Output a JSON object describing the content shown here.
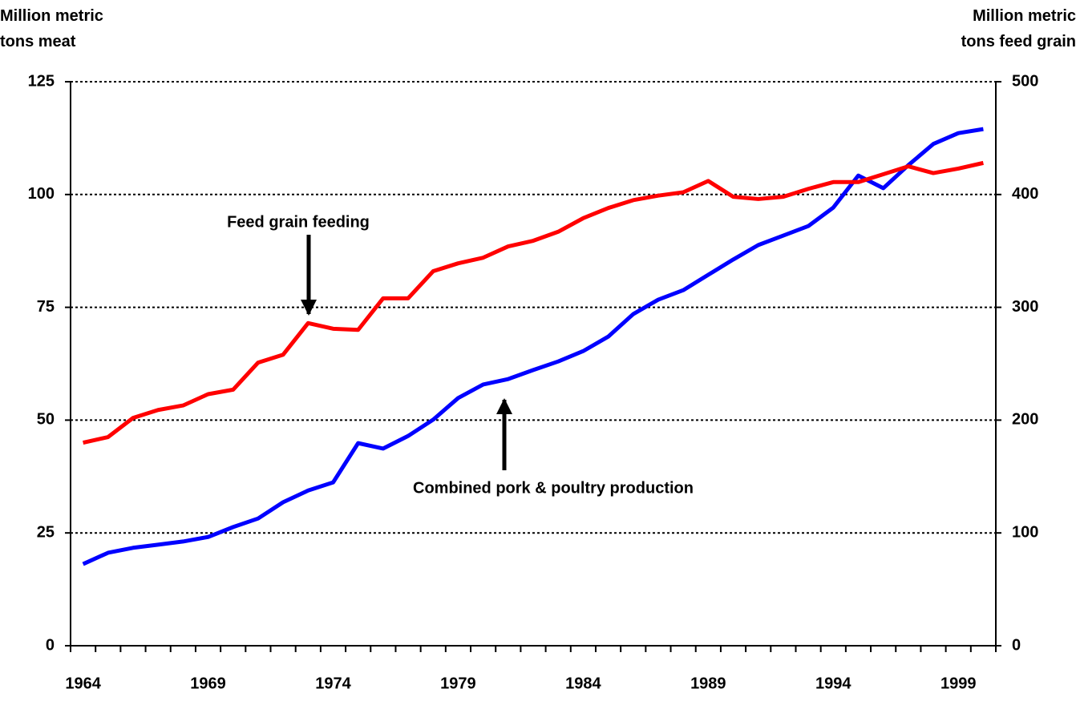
{
  "chart_data": {
    "type": "line",
    "y_label": "Million metric tons meat",
    "y2_label": "Million metric tons feed grain",
    "x": [
      1964,
      1965,
      1966,
      1967,
      1968,
      1969,
      1970,
      1971,
      1972,
      1973,
      1974,
      1975,
      1976,
      1977,
      1978,
      1979,
      1980,
      1981,
      1982,
      1983,
      1984,
      1985,
      1986,
      1987,
      1988,
      1989,
      1990,
      1991,
      1992,
      1993,
      1994,
      1995,
      1996,
      1997,
      1998,
      1999,
      2000
    ],
    "xlim": [
      1963.5,
      2000.5
    ],
    "xticks": [
      1964,
      1969,
      1974,
      1979,
      1984,
      1989,
      1994,
      1999
    ],
    "ylim": [
      0,
      125
    ],
    "yticks": [
      0,
      25,
      50,
      75,
      100,
      125
    ],
    "y2lim": [
      0,
      500
    ],
    "y2ticks": [
      0,
      100,
      200,
      300,
      400,
      500
    ],
    "grid": true,
    "series": [
      {
        "color": "#0000ff",
        "values": [
          18.1,
          20.6,
          21.7,
          22.4,
          23.1,
          24.1,
          26.3,
          28.2,
          31.8,
          34.4,
          36.2,
          44.9,
          43.7,
          46.5,
          50.1,
          54.9,
          57.9,
          59.1,
          61.1,
          63.0,
          65.3,
          68.5,
          73.5,
          76.7,
          78.8,
          82.2,
          85.6,
          88.8,
          90.9,
          93.0,
          97.1,
          104.2,
          101.4,
          106.5,
          111.2,
          113.6,
          114.5
        ]
      },
      {
        "color": "#ff0000",
        "axis": "y2",
        "values": [
          180,
          185,
          202,
          209,
          213,
          223,
          227,
          251,
          258,
          286,
          281,
          280,
          308,
          308,
          332,
          339,
          344,
          354,
          359,
          367,
          379,
          388,
          395,
          399,
          402,
          412,
          398,
          396,
          398,
          405,
          411,
          411,
          418,
          425,
          419,
          423,
          428
        ]
      }
    ],
    "annotations": [
      "Feed grain feeding",
      "Combined pork & poultry production"
    ]
  }
}
